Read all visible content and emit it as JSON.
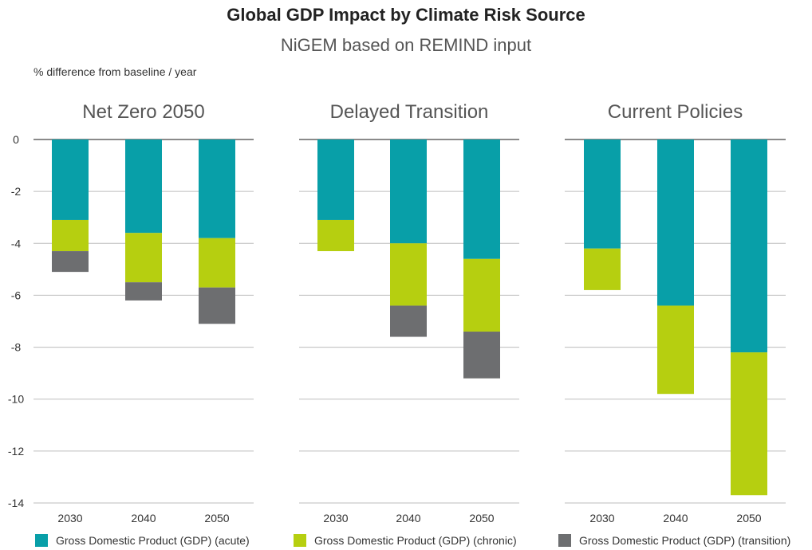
{
  "chart_data": {
    "type": "bar",
    "stacked": true,
    "title": "Global GDP Impact by Climate Risk Source",
    "subtitle": "NiGEM based on REMIND input",
    "ylabel": "% difference from baseline / year",
    "ylim": [
      -14,
      0
    ],
    "yticks": [
      0,
      -2,
      -4,
      -6,
      -8,
      -10,
      -12,
      -14
    ],
    "grid": true,
    "legend_position": "bottom",
    "colors": {
      "acute": "#089fa8",
      "chronic": "#b6cf10",
      "transition": "#6d6e70"
    },
    "series": [
      {
        "key": "acute",
        "name": "Gross Domestic Product (GDP) (acute)"
      },
      {
        "key": "chronic",
        "name": "Gross Domestic Product (GDP) (chronic)"
      },
      {
        "key": "transition",
        "name": "Gross Domestic Product (GDP) (transition)"
      }
    ],
    "panels": [
      {
        "title": "Net Zero 2050",
        "categories": [
          "2030",
          "2040",
          "2050"
        ],
        "acute": [
          -3.1,
          -3.6,
          -3.8
        ],
        "chronic": [
          -1.2,
          -1.9,
          -1.9
        ],
        "transition": [
          -0.8,
          -0.7,
          -1.4
        ]
      },
      {
        "title": "Delayed Transition",
        "categories": [
          "2030",
          "2040",
          "2050"
        ],
        "acute": [
          -3.1,
          -4.0,
          -4.6
        ],
        "chronic": [
          -1.2,
          -2.4,
          -2.8
        ],
        "transition": [
          0,
          -1.2,
          -1.8
        ]
      },
      {
        "title": "Current Policies",
        "categories": [
          "2030",
          "2040",
          "2050"
        ],
        "acute": [
          -4.2,
          -6.4,
          -8.2
        ],
        "chronic": [
          -1.6,
          -3.4,
          -5.5
        ],
        "transition": [
          0,
          0,
          0
        ]
      }
    ]
  }
}
